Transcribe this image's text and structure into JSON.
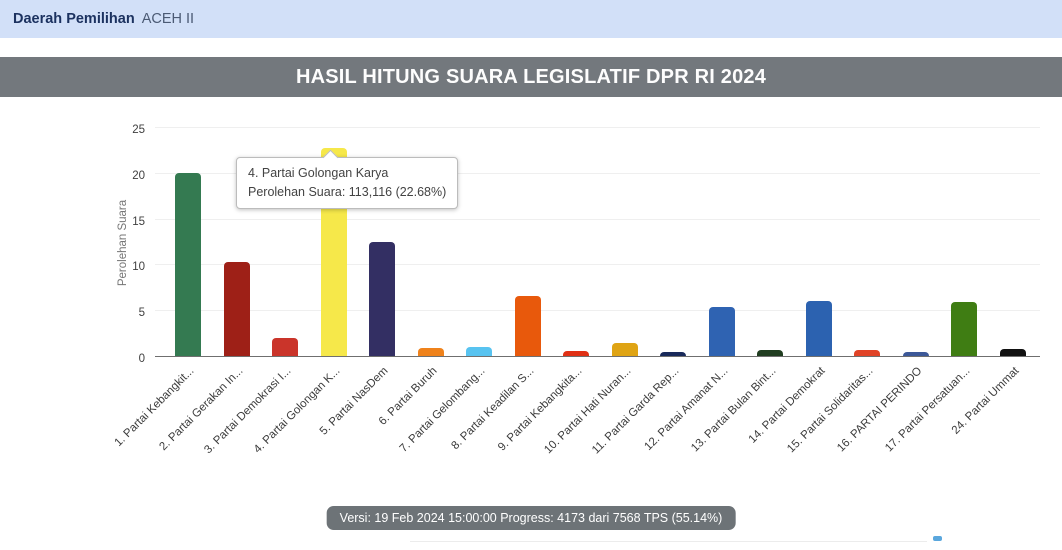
{
  "header": {
    "dapil_label": "Daerah Pemilihan",
    "dapil_value": "ACEH II",
    "bar_color": "#d2e0f8"
  },
  "title_bar": {
    "title": "HASIL HITUNG SUARA LEGISLATIF DPR RI 2024",
    "bg_color": "#73787d"
  },
  "tooltip": {
    "line1": "4. Partai Golongan Karya",
    "line2": "Perolehan Suara: 113,116 (22.68%)"
  },
  "footer": {
    "status": "Versi: 19 Feb 2024 15:00:00 Progress: 4173 dari 7568 TPS (55.14%)",
    "bg_color": "#6d7377"
  },
  "chart_data": {
    "type": "bar",
    "title": "",
    "xlabel": "",
    "ylabel": "Perolehan Suara",
    "ylim": [
      0,
      25
    ],
    "yticks": [
      0,
      5,
      10,
      15,
      20,
      25
    ],
    "grid": true,
    "legend": false,
    "categories": [
      "1. Partai Kebangkit...",
      "2. Partai Gerakan In...",
      "3. Partai Demokrasi I...",
      "4. Partai Golongan K...",
      "5. Partai NasDem",
      "6. Partai Buruh",
      "7. Partai Gelombang...",
      "8. Partai Keadilan S...",
      "9. Partai Kebangkita...",
      "10. Partai Hati Nuran...",
      "11. Partai Garda Rep...",
      "12. Partai Amanat N...",
      "13. Partai Bulan Bint...",
      "14. Partai Demokrat",
      "15. Partai Solidaritas...",
      "16. PARTAI PERINDO",
      "17. Partai Persatuan...",
      "24. Partai Ummat"
    ],
    "values": [
      20.0,
      10.3,
      2.0,
      22.68,
      12.5,
      0.9,
      1.0,
      6.5,
      0.55,
      1.45,
      0.45,
      5.3,
      0.65,
      6.0,
      0.7,
      0.45,
      5.9,
      0.75
    ],
    "colors": [
      "#347a51",
      "#9e2017",
      "#ca342a",
      "#f6e84a",
      "#332f63",
      "#ef821b",
      "#58c3f0",
      "#e8590c",
      "#e03015",
      "#dfa414",
      "#18295a",
      "#2f63b2",
      "#203d20",
      "#2c62b0",
      "#e04327",
      "#3c5898",
      "#3f7d13",
      "#111111"
    ],
    "highlighted_bar": {
      "index": 3,
      "label": "4. Partai Golongan Karya",
      "votes": "113,116",
      "percent": "22.68%"
    }
  }
}
